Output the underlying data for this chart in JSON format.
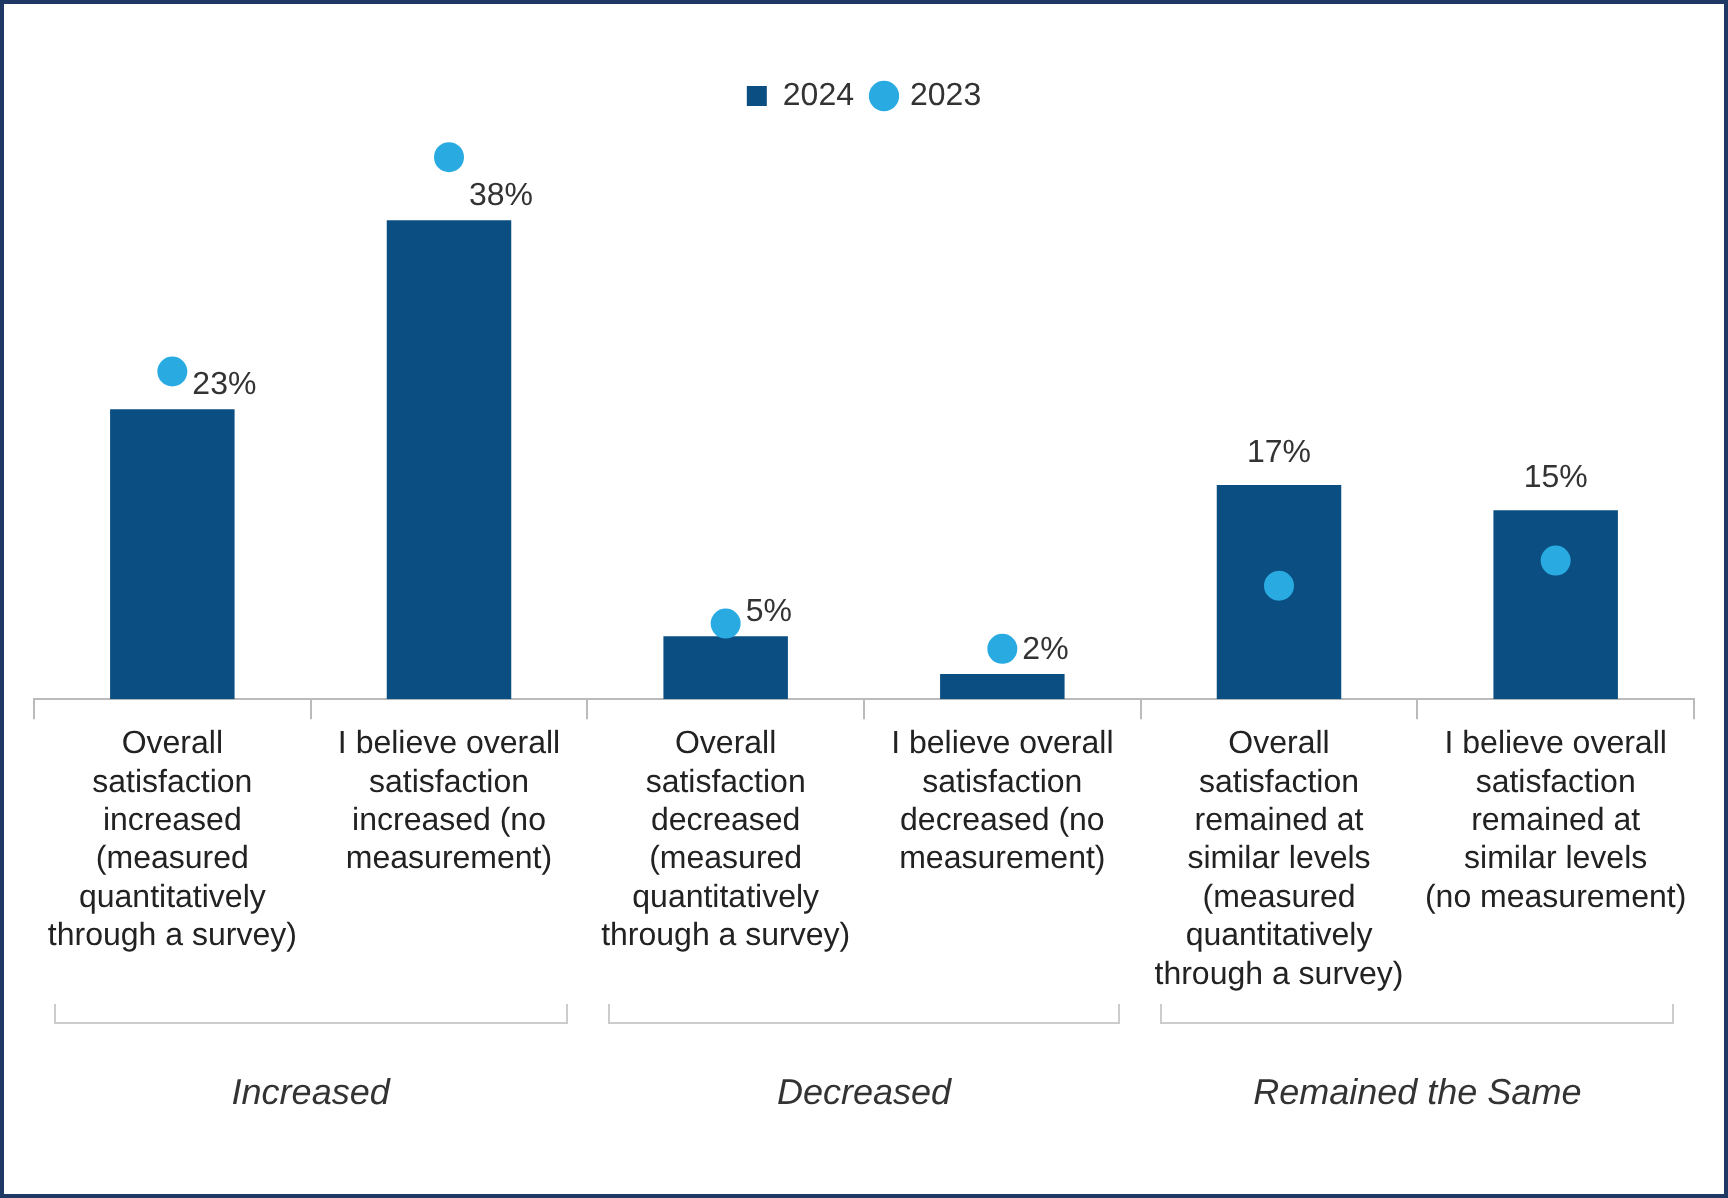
{
  "chart_data": {
    "type": "bar",
    "categories": [
      "Overall satisfaction increased (measured quantitatively through a survey)",
      "I believe overall satisfaction increased (no measurement)",
      "Overall satisfaction decreased (measured quantitatively through a survey)",
      "I believe overall satisfaction decreased (no measurement)",
      "Overall satisfaction remained at similar levels (measured quantitatively through a survey)",
      "I believe overall satisfaction remained at similar levels (no measurement)"
    ],
    "series": [
      {
        "name": "2024",
        "color": "#0b4f82",
        "values": [
          23,
          38,
          5,
          2,
          17,
          15
        ],
        "value_labels": [
          "23%",
          "38%",
          "5%",
          "2%",
          "17%",
          "15%"
        ]
      },
      {
        "name": "2023",
        "type": "scatter",
        "color": "#29abe2",
        "marker": "circle",
        "x": [
          "Overall satisfaction increased (measured quantitatively through a survey)",
          "I believe overall satisfaction increased (no measurement)",
          "Overall satisfaction decreased (measured quantitatively through a survey)",
          "I believe overall satisfaction decreased (no measurement)",
          "Overall satisfaction remained at similar levels (measured quantitatively through a survey)",
          "I believe overall satisfaction remained at similar levels (no measurement)"
        ],
        "values": [
          26,
          43,
          6,
          4,
          9,
          11
        ]
      }
    ],
    "tick_labels": "x",
    "legend": "top",
    "grid": false,
    "annotations": [
      "Increased",
      "Decreased",
      "Remained the Same"
    ]
  }
}
